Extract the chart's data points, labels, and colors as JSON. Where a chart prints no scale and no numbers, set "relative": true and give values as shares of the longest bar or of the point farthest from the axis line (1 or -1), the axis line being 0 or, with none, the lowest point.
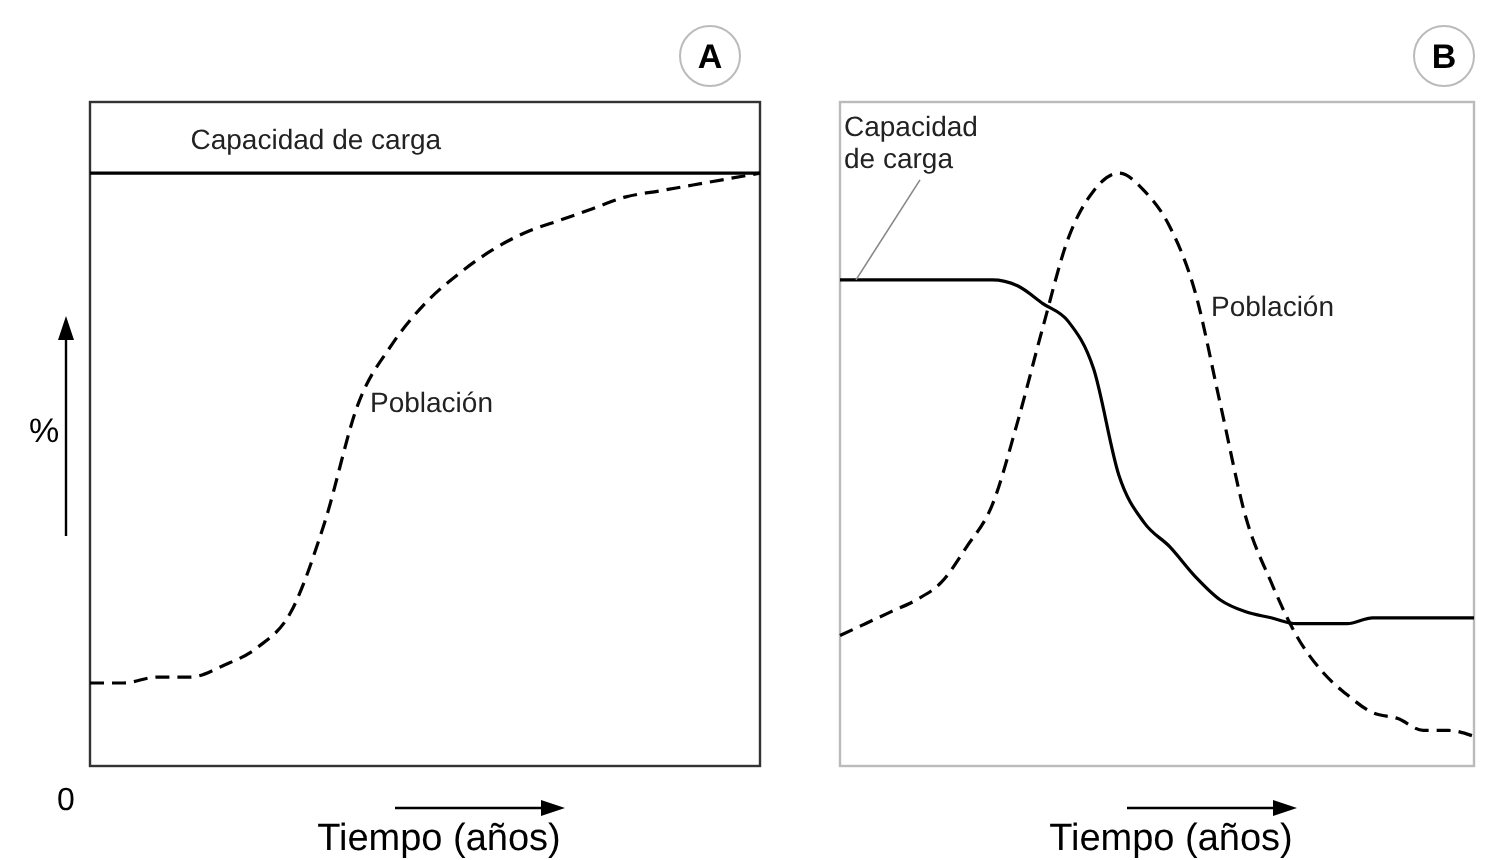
{
  "chart_data": [
    {
      "type": "line",
      "title": "A",
      "xlabel": "Tiempo (años)",
      "ylabel": "%",
      "relative": true,
      "annotations": [
        "0"
      ],
      "categories": [
        null,
        null,
        null,
        null,
        null,
        null,
        null,
        null,
        null,
        null,
        null,
        null,
        null,
        null,
        null,
        null,
        null,
        null,
        null,
        null,
        null
      ],
      "series": [
        {
          "name": "Capacidad de carga",
          "color": "#000000",
          "line_style": "solid",
          "values": [
            1,
            1,
            1,
            1,
            1,
            1,
            1,
            1,
            1,
            1,
            1,
            1,
            1,
            1,
            1,
            1,
            1,
            1,
            1,
            1,
            1
          ]
        },
        {
          "name": "Población",
          "color": "#000000",
          "line_style": "dashed",
          "values": [
            0.14,
            0.14,
            0.15,
            0.15,
            0.17,
            0.2,
            0.26,
            0.41,
            0.61,
            0.71,
            0.78,
            0.83,
            0.87,
            0.9,
            0.92,
            0.94,
            0.96,
            0.97,
            0.98,
            0.99,
            1
          ]
        }
      ]
    },
    {
      "type": "line",
      "title": "B",
      "xlabel": "Tiempo (años)",
      "relative": true,
      "categories": [
        null,
        null,
        null,
        null,
        null,
        null,
        null,
        null,
        null,
        null,
        null,
        null,
        null,
        null,
        null,
        null,
        null,
        null,
        null,
        null,
        null,
        null,
        null,
        null,
        null,
        null
      ],
      "series": [
        {
          "name": "Capacidad de carga",
          "color": "#000000",
          "line_style": "solid",
          "values": [
            0.82,
            0.82,
            0.82,
            0.82,
            0.82,
            0.82,
            0.82,
            0.81,
            0.78,
            0.75,
            0.67,
            0.49,
            0.41,
            0.37,
            0.32,
            0.28,
            0.26,
            0.25,
            0.24,
            0.24,
            0.24,
            0.25,
            0.25,
            0.25,
            0.25,
            0.25
          ]
        },
        {
          "name": "Población",
          "color": "#000000",
          "line_style": "dashed",
          "values": [
            0.22,
            0.24,
            0.26,
            0.28,
            0.31,
            0.37,
            0.44,
            0.58,
            0.74,
            0.89,
            0.97,
            1,
            0.97,
            0.91,
            0.8,
            0.61,
            0.42,
            0.31,
            0.22,
            0.16,
            0.12,
            0.09,
            0.08,
            0.06,
            0.06,
            0.05
          ]
        }
      ]
    }
  ]
}
